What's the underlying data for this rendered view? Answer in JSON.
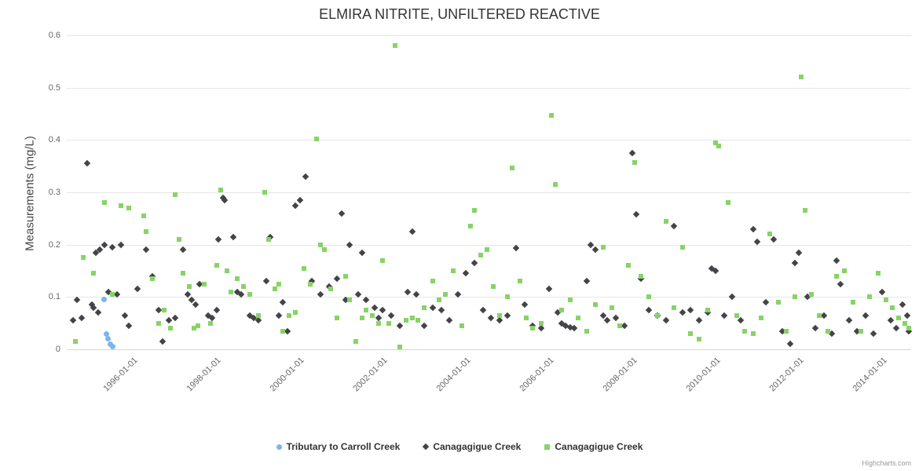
{
  "title": "ELMIRA NITRITE, UNFILTERED REACTIVE",
  "credits_label": "Highcharts.com",
  "chart_data": {
    "type": "scatter",
    "title": "ELMIRA NITRITE, UNFILTERED REACTIVE",
    "xlabel": "",
    "ylabel": "Measurements (mg/L)",
    "ylim": [
      0,
      0.6
    ],
    "xlim": [
      1994.4,
      2014.7
    ],
    "grid": true,
    "legend_position": "bottom",
    "y_ticks": [
      {
        "value": 0,
        "label": "0"
      },
      {
        "value": 0.1,
        "label": "0.1"
      },
      {
        "value": 0.2,
        "label": "0.2"
      },
      {
        "value": 0.3,
        "label": "0.3"
      },
      {
        "value": 0.4,
        "label": "0.4"
      },
      {
        "value": 0.5,
        "label": "0.5"
      },
      {
        "value": 0.6,
        "label": "0.6"
      }
    ],
    "x_ticks": [
      {
        "value": 1996,
        "label": "1996-01-01"
      },
      {
        "value": 1998,
        "label": "1998-01-01"
      },
      {
        "value": 2000,
        "label": "2000-01-01"
      },
      {
        "value": 2002,
        "label": "2002-01-01"
      },
      {
        "value": 2004,
        "label": "2004-01-01"
      },
      {
        "value": 2006,
        "label": "2006-01-01"
      },
      {
        "value": 2008,
        "label": "2008-01-01"
      },
      {
        "value": 2010,
        "label": "2010-01-01"
      },
      {
        "value": 2012,
        "label": "2012-01-01"
      },
      {
        "value": 2014,
        "label": "2014-01-01"
      }
    ],
    "series": [
      {
        "name": "Tributary to Carroll Creek",
        "marker": "circle",
        "color": "#7cb5ec",
        "points": [
          [
            1995.3,
            0.095
          ],
          [
            1995.35,
            0.03
          ],
          [
            1995.4,
            0.02
          ],
          [
            1995.45,
            0.01
          ],
          [
            1995.5,
            0.005
          ]
        ]
      },
      {
        "name": "Canagagigue Creek",
        "marker": "diamond",
        "color": "#434348",
        "points": [
          [
            1994.55,
            0.055
          ],
          [
            1994.65,
            0.095
          ],
          [
            1994.75,
            0.06
          ],
          [
            1994.9,
            0.355
          ],
          [
            1995.0,
            0.085
          ],
          [
            1995.05,
            0.08
          ],
          [
            1995.1,
            0.185
          ],
          [
            1995.15,
            0.07
          ],
          [
            1995.2,
            0.19
          ],
          [
            1995.3,
            0.2
          ],
          [
            1995.4,
            0.11
          ],
          [
            1995.5,
            0.195
          ],
          [
            1995.6,
            0.105
          ],
          [
            1995.7,
            0.2
          ],
          [
            1995.8,
            0.065
          ],
          [
            1995.9,
            0.045
          ],
          [
            1996.1,
            0.115
          ],
          [
            1996.3,
            0.19
          ],
          [
            1996.45,
            0.14
          ],
          [
            1996.6,
            0.075
          ],
          [
            1996.7,
            0.015
          ],
          [
            1996.85,
            0.055
          ],
          [
            1997.0,
            0.06
          ],
          [
            1997.2,
            0.19
          ],
          [
            1997.3,
            0.105
          ],
          [
            1997.4,
            0.095
          ],
          [
            1997.5,
            0.085
          ],
          [
            1997.6,
            0.125
          ],
          [
            1997.8,
            0.065
          ],
          [
            1997.9,
            0.06
          ],
          [
            1998.0,
            0.075
          ],
          [
            1998.05,
            0.21
          ],
          [
            1998.15,
            0.29
          ],
          [
            1998.2,
            0.285
          ],
          [
            1998.4,
            0.215
          ],
          [
            1998.5,
            0.11
          ],
          [
            1998.6,
            0.105
          ],
          [
            1998.8,
            0.065
          ],
          [
            1998.9,
            0.06
          ],
          [
            1999.0,
            0.055
          ],
          [
            1999.2,
            0.13
          ],
          [
            1999.3,
            0.215
          ],
          [
            1999.5,
            0.065
          ],
          [
            1999.6,
            0.09
          ],
          [
            1999.7,
            0.035
          ],
          [
            1999.9,
            0.275
          ],
          [
            2000.0,
            0.285
          ],
          [
            2000.15,
            0.33
          ],
          [
            2000.3,
            0.13
          ],
          [
            2000.5,
            0.105
          ],
          [
            2000.7,
            0.12
          ],
          [
            2000.9,
            0.135
          ],
          [
            2001.0,
            0.26
          ],
          [
            2001.1,
            0.095
          ],
          [
            2001.2,
            0.2
          ],
          [
            2001.4,
            0.105
          ],
          [
            2001.5,
            0.185
          ],
          [
            2001.6,
            0.095
          ],
          [
            2001.8,
            0.08
          ],
          [
            2001.9,
            0.06
          ],
          [
            2002.0,
            0.075
          ],
          [
            2002.2,
            0.065
          ],
          [
            2002.4,
            0.045
          ],
          [
            2002.6,
            0.11
          ],
          [
            2002.7,
            0.225
          ],
          [
            2002.8,
            0.105
          ],
          [
            2003.0,
            0.045
          ],
          [
            2003.2,
            0.08
          ],
          [
            2003.4,
            0.075
          ],
          [
            2003.6,
            0.055
          ],
          [
            2003.8,
            0.105
          ],
          [
            2004.0,
            0.145
          ],
          [
            2004.2,
            0.165
          ],
          [
            2004.4,
            0.075
          ],
          [
            2004.6,
            0.06
          ],
          [
            2004.8,
            0.055
          ],
          [
            2005.0,
            0.065
          ],
          [
            2005.2,
            0.193
          ],
          [
            2005.4,
            0.085
          ],
          [
            2005.6,
            0.045
          ],
          [
            2005.8,
            0.04
          ],
          [
            2006.0,
            0.115
          ],
          [
            2006.2,
            0.07
          ],
          [
            2006.3,
            0.05
          ],
          [
            2006.4,
            0.045
          ],
          [
            2006.5,
            0.042
          ],
          [
            2006.6,
            0.04
          ],
          [
            2006.9,
            0.13
          ],
          [
            2007.0,
            0.2
          ],
          [
            2007.1,
            0.19
          ],
          [
            2007.3,
            0.065
          ],
          [
            2007.4,
            0.055
          ],
          [
            2007.6,
            0.06
          ],
          [
            2007.8,
            0.045
          ],
          [
            2008.0,
            0.375
          ],
          [
            2008.1,
            0.258
          ],
          [
            2008.2,
            0.135
          ],
          [
            2008.4,
            0.075
          ],
          [
            2008.6,
            0.065
          ],
          [
            2008.8,
            0.055
          ],
          [
            2009.0,
            0.235
          ],
          [
            2009.2,
            0.07
          ],
          [
            2009.4,
            0.075
          ],
          [
            2009.6,
            0.055
          ],
          [
            2009.8,
            0.07
          ],
          [
            2009.9,
            0.155
          ],
          [
            2010.0,
            0.15
          ],
          [
            2010.2,
            0.065
          ],
          [
            2010.4,
            0.1
          ],
          [
            2010.6,
            0.055
          ],
          [
            2010.9,
            0.23
          ],
          [
            2011.0,
            0.205
          ],
          [
            2011.2,
            0.09
          ],
          [
            2011.4,
            0.21
          ],
          [
            2011.6,
            0.035
          ],
          [
            2011.8,
            0.01
          ],
          [
            2011.9,
            0.165
          ],
          [
            2012.0,
            0.185
          ],
          [
            2012.2,
            0.1
          ],
          [
            2012.4,
            0.04
          ],
          [
            2012.6,
            0.065
          ],
          [
            2012.8,
            0.03
          ],
          [
            2012.9,
            0.17
          ],
          [
            2013.0,
            0.125
          ],
          [
            2013.2,
            0.055
          ],
          [
            2013.4,
            0.035
          ],
          [
            2013.6,
            0.065
          ],
          [
            2013.8,
            0.03
          ],
          [
            2014.0,
            0.11
          ],
          [
            2014.2,
            0.055
          ],
          [
            2014.35,
            0.04
          ],
          [
            2014.5,
            0.085
          ],
          [
            2014.6,
            0.065
          ],
          [
            2014.65,
            0.035
          ]
        ]
      },
      {
        "name": "Canagagigue Creek",
        "marker": "square",
        "color": "#86d465",
        "points": [
          [
            1994.6,
            0.015
          ],
          [
            1994.8,
            0.175
          ],
          [
            1995.05,
            0.145
          ],
          [
            1995.3,
            0.28
          ],
          [
            1995.5,
            0.105
          ],
          [
            1995.7,
            0.275
          ],
          [
            1995.9,
            0.27
          ],
          [
            1996.25,
            0.255
          ],
          [
            1996.3,
            0.225
          ],
          [
            1996.45,
            0.135
          ],
          [
            1996.6,
            0.05
          ],
          [
            1996.75,
            0.075
          ],
          [
            1996.9,
            0.04
          ],
          [
            1997.0,
            0.295
          ],
          [
            1997.1,
            0.21
          ],
          [
            1997.2,
            0.145
          ],
          [
            1997.35,
            0.12
          ],
          [
            1997.45,
            0.04
          ],
          [
            1997.55,
            0.045
          ],
          [
            1997.7,
            0.125
          ],
          [
            1997.85,
            0.05
          ],
          [
            1998.0,
            0.16
          ],
          [
            1998.1,
            0.305
          ],
          [
            1998.25,
            0.15
          ],
          [
            1998.35,
            0.11
          ],
          [
            1998.5,
            0.135
          ],
          [
            1998.65,
            0.12
          ],
          [
            1998.8,
            0.105
          ],
          [
            1999.0,
            0.065
          ],
          [
            1999.15,
            0.3
          ],
          [
            1999.25,
            0.21
          ],
          [
            1999.4,
            0.115
          ],
          [
            1999.5,
            0.125
          ],
          [
            1999.6,
            0.035
          ],
          [
            1999.75,
            0.065
          ],
          [
            1999.9,
            0.07
          ],
          [
            2000.1,
            0.155
          ],
          [
            2000.25,
            0.125
          ],
          [
            2000.4,
            0.402
          ],
          [
            2000.5,
            0.2
          ],
          [
            2000.6,
            0.19
          ],
          [
            2000.75,
            0.115
          ],
          [
            2000.9,
            0.06
          ],
          [
            2001.1,
            0.14
          ],
          [
            2001.2,
            0.095
          ],
          [
            2001.35,
            0.015
          ],
          [
            2001.5,
            0.06
          ],
          [
            2001.6,
            0.075
          ],
          [
            2001.75,
            0.065
          ],
          [
            2001.9,
            0.05
          ],
          [
            2002.0,
            0.17
          ],
          [
            2002.15,
            0.05
          ],
          [
            2002.3,
            0.58
          ],
          [
            2002.4,
            0.005
          ],
          [
            2002.55,
            0.055
          ],
          [
            2002.7,
            0.06
          ],
          [
            2002.85,
            0.055
          ],
          [
            2003.0,
            0.08
          ],
          [
            2003.2,
            0.13
          ],
          [
            2003.35,
            0.095
          ],
          [
            2003.5,
            0.105
          ],
          [
            2003.7,
            0.15
          ],
          [
            2003.9,
            0.045
          ],
          [
            2004.1,
            0.235
          ],
          [
            2004.2,
            0.265
          ],
          [
            2004.35,
            0.18
          ],
          [
            2004.5,
            0.19
          ],
          [
            2004.65,
            0.12
          ],
          [
            2004.8,
            0.065
          ],
          [
            2005.0,
            0.1
          ],
          [
            2005.1,
            0.347
          ],
          [
            2005.3,
            0.13
          ],
          [
            2005.45,
            0.06
          ],
          [
            2005.6,
            0.04
          ],
          [
            2005.8,
            0.05
          ],
          [
            2006.05,
            0.447
          ],
          [
            2006.15,
            0.315
          ],
          [
            2006.3,
            0.075
          ],
          [
            2006.5,
            0.095
          ],
          [
            2006.7,
            0.06
          ],
          [
            2006.9,
            0.035
          ],
          [
            2007.1,
            0.085
          ],
          [
            2007.3,
            0.195
          ],
          [
            2007.5,
            0.08
          ],
          [
            2007.7,
            0.045
          ],
          [
            2007.9,
            0.16
          ],
          [
            2008.05,
            0.357
          ],
          [
            2008.2,
            0.14
          ],
          [
            2008.4,
            0.1
          ],
          [
            2008.6,
            0.065
          ],
          [
            2008.8,
            0.245
          ],
          [
            2009.0,
            0.08
          ],
          [
            2009.2,
            0.195
          ],
          [
            2009.4,
            0.03
          ],
          [
            2009.6,
            0.02
          ],
          [
            2009.8,
            0.075
          ],
          [
            2010.0,
            0.395
          ],
          [
            2010.08,
            0.388
          ],
          [
            2010.3,
            0.28
          ],
          [
            2010.5,
            0.065
          ],
          [
            2010.7,
            0.035
          ],
          [
            2010.9,
            0.03
          ],
          [
            2011.1,
            0.06
          ],
          [
            2011.3,
            0.22
          ],
          [
            2011.5,
            0.09
          ],
          [
            2011.7,
            0.035
          ],
          [
            2011.9,
            0.1
          ],
          [
            2012.05,
            0.52
          ],
          [
            2012.15,
            0.265
          ],
          [
            2012.3,
            0.105
          ],
          [
            2012.5,
            0.065
          ],
          [
            2012.7,
            0.035
          ],
          [
            2012.9,
            0.14
          ],
          [
            2013.1,
            0.15
          ],
          [
            2013.3,
            0.09
          ],
          [
            2013.5,
            0.035
          ],
          [
            2013.7,
            0.1
          ],
          [
            2013.9,
            0.145
          ],
          [
            2014.1,
            0.095
          ],
          [
            2014.25,
            0.08
          ],
          [
            2014.4,
            0.06
          ],
          [
            2014.55,
            0.05
          ],
          [
            2014.65,
            0.04
          ]
        ]
      }
    ]
  }
}
